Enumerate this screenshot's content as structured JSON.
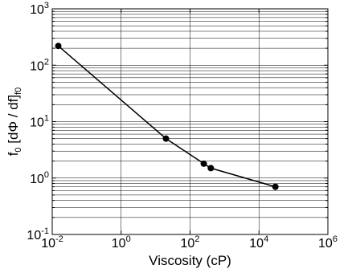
{
  "chart_data": {
    "type": "line",
    "title": "",
    "xlabel": "Viscosity (cP)",
    "ylabel": {
      "main": "f",
      "sub": "0",
      "body": " [dΦ / df]",
      "sub2": "f0"
    },
    "x_scale": "log",
    "y_scale": "log",
    "xlim": [
      0.01,
      1000000
    ],
    "ylim": [
      0.1,
      1000
    ],
    "grid": true,
    "x_ticks": [
      {
        "base": "10",
        "exp": "-2",
        "value": 0.01
      },
      {
        "base": "10",
        "exp": "0",
        "value": 1
      },
      {
        "base": "10",
        "exp": "2",
        "value": 100
      },
      {
        "base": "10",
        "exp": "4",
        "value": 10000
      },
      {
        "base": "10",
        "exp": "6",
        "value": 1000000
      }
    ],
    "y_ticks": [
      {
        "base": "10",
        "exp": "-1",
        "value": 0.1
      },
      {
        "base": "10",
        "exp": "0",
        "value": 1
      },
      {
        "base": "10",
        "exp": "1",
        "value": 10
      },
      {
        "base": "10",
        "exp": "2",
        "value": 100
      },
      {
        "base": "10",
        "exp": "3",
        "value": 1000
      }
    ],
    "series": [
      {
        "color": "#000000",
        "marker": "circle",
        "points": [
          {
            "x": 0.015,
            "y": 220
          },
          {
            "x": 20,
            "y": 5.0
          },
          {
            "x": 250,
            "y": 1.8
          },
          {
            "x": 400,
            "y": 1.5
          },
          {
            "x": 30000,
            "y": 0.7
          }
        ]
      }
    ]
  }
}
